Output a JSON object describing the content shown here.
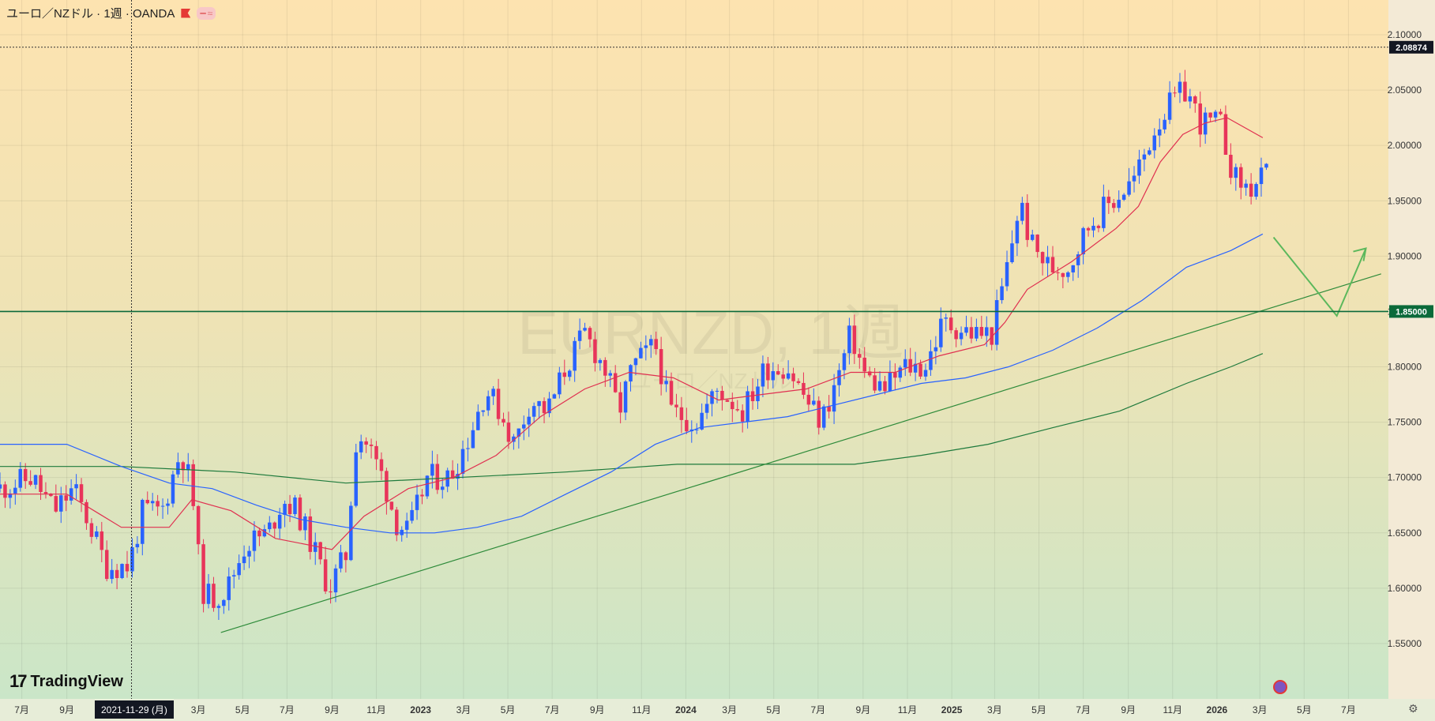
{
  "header": {
    "title": "ユーロ／NZドル · 1週 · OANDA",
    "pill_icons": [
      "minus-icon",
      "wave-icon"
    ],
    "pill_glyphs": [
      "━",
      "≈"
    ]
  },
  "watermark": {
    "symbol": "EURNZD, 1週",
    "name": "ユーロ／NZドル"
  },
  "brand": {
    "name": "TradingView"
  },
  "crosshair": {
    "date_label": "2021-11-29 (月)",
    "price_label": "2.08874"
  },
  "colors": {
    "up": "#2962ff",
    "down": "#e8345a",
    "ma_fast": "#e03050",
    "ma_mid": "#2962ff",
    "ma_slow": "#1e7a3c",
    "level_line": "#0b6a3a",
    "trend_line": "#2e8b3a",
    "forecast": "#5cb85c"
  },
  "chart_data": {
    "type": "candlestick",
    "symbol": "EURNZD",
    "timeframe": "1週",
    "ylim": [
      1.5,
      2.11
    ],
    "y_ticks": [
      "2.10000",
      "2.05000",
      "2.00000",
      "1.95000",
      "1.90000",
      "1.85000",
      "1.80000",
      "1.75000",
      "1.70000",
      "1.65000",
      "1.60000",
      "1.55000"
    ],
    "x_ticks": [
      {
        "label": "7月",
        "date": "2021-07-01"
      },
      {
        "label": "9月",
        "date": "2021-09-01"
      },
      {
        "label": "3月",
        "date": "2022-03-01"
      },
      {
        "label": "5月",
        "date": "2022-05-01"
      },
      {
        "label": "7月",
        "date": "2022-07-01"
      },
      {
        "label": "9月",
        "date": "2022-09-01"
      },
      {
        "label": "11月",
        "date": "2022-11-01"
      },
      {
        "label": "2023",
        "date": "2023-01-01"
      },
      {
        "label": "3月",
        "date": "2023-03-01"
      },
      {
        "label": "5月",
        "date": "2023-05-01"
      },
      {
        "label": "7月",
        "date": "2023-07-01"
      },
      {
        "label": "9月",
        "date": "2023-09-01"
      },
      {
        "label": "11月",
        "date": "2023-11-01"
      },
      {
        "label": "2024",
        "date": "2024-01-01"
      },
      {
        "label": "3月",
        "date": "2024-03-01"
      },
      {
        "label": "5月",
        "date": "2024-05-01"
      },
      {
        "label": "7月",
        "date": "2024-07-01"
      },
      {
        "label": "9月",
        "date": "2024-09-01"
      },
      {
        "label": "11月",
        "date": "2024-11-01"
      },
      {
        "label": "2025",
        "date": "2025-01-01"
      },
      {
        "label": "3月",
        "date": "2025-03-01"
      },
      {
        "label": "5月",
        "date": "2025-05-01"
      },
      {
        "label": "7月",
        "date": "2025-07-01"
      },
      {
        "label": "9月",
        "date": "2025-09-01"
      },
      {
        "label": "11月",
        "date": "2025-11-01"
      },
      {
        "label": "2026",
        "date": "2026-01-01"
      },
      {
        "label": "3月",
        "date": "2026-03-01"
      },
      {
        "label": "5月",
        "date": "2026-05-01"
      },
      {
        "label": "7月",
        "date": "2026-07-01"
      }
    ],
    "price_path": [
      [
        "2021-06-01",
        1.69
      ],
      [
        "2021-07-15",
        1.7
      ],
      [
        "2021-08-15",
        1.67
      ],
      [
        "2021-09-10",
        1.69
      ],
      [
        "2021-10-01",
        1.66
      ],
      [
        "2021-10-25",
        1.62
      ],
      [
        "2021-11-25",
        1.62
      ],
      [
        "2021-12-15",
        1.67
      ],
      [
        "2022-01-10",
        1.67
      ],
      [
        "2022-02-05",
        1.725
      ],
      [
        "2022-02-20",
        1.69
      ],
      [
        "2022-03-05",
        1.6
      ],
      [
        "2022-03-20",
        1.59
      ],
      [
        "2022-04-10",
        1.6
      ],
      [
        "2022-05-05",
        1.64
      ],
      [
        "2022-06-05",
        1.65
      ],
      [
        "2022-06-25",
        1.68
      ],
      [
        "2022-07-15",
        1.67
      ],
      [
        "2022-08-10",
        1.63
      ],
      [
        "2022-08-28",
        1.6
      ],
      [
        "2022-09-20",
        1.63
      ],
      [
        "2022-10-05",
        1.74
      ],
      [
        "2022-10-20",
        1.73
      ],
      [
        "2022-11-10",
        1.7
      ],
      [
        "2022-11-28",
        1.66
      ],
      [
        "2022-12-15",
        1.65
      ],
      [
        "2023-01-10",
        1.7
      ],
      [
        "2023-02-10",
        1.7
      ],
      [
        "2023-03-10",
        1.74
      ],
      [
        "2023-04-01",
        1.78
      ],
      [
        "2023-04-20",
        1.76
      ],
      [
        "2023-05-10",
        1.73
      ],
      [
        "2023-06-01",
        1.77
      ],
      [
        "2023-06-25",
        1.76
      ],
      [
        "2023-07-20",
        1.8
      ],
      [
        "2023-08-15",
        1.83
      ],
      [
        "2023-09-10",
        1.8
      ],
      [
        "2023-10-01",
        1.76
      ],
      [
        "2023-10-20",
        1.8
      ],
      [
        "2023-11-20",
        1.82
      ],
      [
        "2023-12-10",
        1.76
      ],
      [
        "2024-01-15",
        1.75
      ],
      [
        "2024-02-15",
        1.78
      ],
      [
        "2024-03-20",
        1.76
      ],
      [
        "2024-04-20",
        1.8
      ],
      [
        "2024-05-20",
        1.8
      ],
      [
        "2024-06-15",
        1.77
      ],
      [
        "2024-07-05",
        1.75
      ],
      [
        "2024-07-28",
        1.79
      ],
      [
        "2024-08-15",
        1.83
      ],
      [
        "2024-09-05",
        1.79
      ],
      [
        "2024-10-01",
        1.78
      ],
      [
        "2024-10-28",
        1.8
      ],
      [
        "2024-11-25",
        1.8
      ],
      [
        "2024-12-20",
        1.84
      ],
      [
        "2025-02-01",
        1.83
      ],
      [
        "2025-02-25",
        1.83
      ],
      [
        "2025-03-15",
        1.88
      ],
      [
        "2025-04-05",
        1.95
      ],
      [
        "2025-04-20",
        1.91
      ],
      [
        "2025-05-15",
        1.89
      ],
      [
        "2025-06-10",
        1.89
      ],
      [
        "2025-07-10",
        1.93
      ],
      [
        "2025-08-10",
        1.95
      ],
      [
        "2025-09-10",
        1.97
      ],
      [
        "2025-10-10",
        2.02
      ],
      [
        "2025-11-01",
        2.04
      ],
      [
        "2025-11-20",
        2.05
      ],
      [
        "2025-12-10",
        2.02
      ],
      [
        "2026-01-05",
        2.02
      ],
      [
        "2026-01-25",
        1.97
      ],
      [
        "2026-02-15",
        1.96
      ],
      [
        "2026-03-05",
        1.97
      ],
      [
        "2026-03-15",
        1.975
      ]
    ],
    "ma_fast": [
      [
        "2021-06-01",
        1.685
      ],
      [
        "2021-09-01",
        1.685
      ],
      [
        "2021-11-15",
        1.655
      ],
      [
        "2022-01-20",
        1.655
      ],
      [
        "2022-02-20",
        1.68
      ],
      [
        "2022-04-15",
        1.67
      ],
      [
        "2022-06-15",
        1.645
      ],
      [
        "2022-09-01",
        1.635
      ],
      [
        "2022-10-15",
        1.665
      ],
      [
        "2022-12-15",
        1.69
      ],
      [
        "2023-02-15",
        1.7
      ],
      [
        "2023-04-15",
        1.72
      ],
      [
        "2023-06-15",
        1.755
      ],
      [
        "2023-08-15",
        1.78
      ],
      [
        "2023-10-15",
        1.795
      ],
      [
        "2023-12-15",
        1.79
      ],
      [
        "2024-02-15",
        1.77
      ],
      [
        "2024-04-15",
        1.775
      ],
      [
        "2024-06-15",
        1.78
      ],
      [
        "2024-08-15",
        1.795
      ],
      [
        "2024-10-15",
        1.795
      ],
      [
        "2024-12-15",
        1.81
      ],
      [
        "2025-02-15",
        1.82
      ],
      [
        "2025-03-15",
        1.84
      ],
      [
        "2025-04-15",
        1.87
      ],
      [
        "2025-06-15",
        1.895
      ],
      [
        "2025-08-15",
        1.925
      ],
      [
        "2025-09-15",
        1.945
      ],
      [
        "2025-10-15",
        1.985
      ],
      [
        "2025-11-15",
        2.01
      ],
      [
        "2025-12-15",
        2.02
      ],
      [
        "2026-01-15",
        2.025
      ],
      [
        "2026-03-05",
        2.007
      ]
    ],
    "ma_mid": [
      [
        "2021-06-01",
        1.73
      ],
      [
        "2021-09-01",
        1.73
      ],
      [
        "2021-11-15",
        1.71
      ],
      [
        "2022-01-20",
        1.695
      ],
      [
        "2022-03-20",
        1.69
      ],
      [
        "2022-05-20",
        1.675
      ],
      [
        "2022-07-20",
        1.662
      ],
      [
        "2022-09-20",
        1.655
      ],
      [
        "2022-11-20",
        1.65
      ],
      [
        "2023-01-20",
        1.65
      ],
      [
        "2023-03-20",
        1.655
      ],
      [
        "2023-05-20",
        1.665
      ],
      [
        "2023-07-20",
        1.685
      ],
      [
        "2023-09-20",
        1.705
      ],
      [
        "2023-11-20",
        1.73
      ],
      [
        "2024-01-20",
        1.745
      ],
      [
        "2024-03-20",
        1.75
      ],
      [
        "2024-05-20",
        1.755
      ],
      [
        "2024-07-20",
        1.765
      ],
      [
        "2024-09-20",
        1.775
      ],
      [
        "2024-11-20",
        1.785
      ],
      [
        "2025-01-20",
        1.79
      ],
      [
        "2025-03-20",
        1.8
      ],
      [
        "2025-05-20",
        1.815
      ],
      [
        "2025-07-20",
        1.835
      ],
      [
        "2025-09-20",
        1.86
      ],
      [
        "2025-11-20",
        1.89
      ],
      [
        "2026-01-20",
        1.905
      ],
      [
        "2026-03-05",
        1.92
      ]
    ],
    "ma_slow": [
      [
        "2021-06-01",
        1.71
      ],
      [
        "2021-11-15",
        1.71
      ],
      [
        "2022-04-20",
        1.705
      ],
      [
        "2022-09-20",
        1.695
      ],
      [
        "2023-02-20",
        1.7
      ],
      [
        "2023-07-20",
        1.705
      ],
      [
        "2023-12-20",
        1.712
      ],
      [
        "2024-05-20",
        1.712
      ],
      [
        "2024-08-20",
        1.712
      ],
      [
        "2024-11-20",
        1.72
      ],
      [
        "2025-02-20",
        1.73
      ],
      [
        "2025-05-20",
        1.745
      ],
      [
        "2025-08-20",
        1.76
      ],
      [
        "2025-11-20",
        1.785
      ],
      [
        "2026-01-20",
        1.8
      ],
      [
        "2026-03-05",
        1.812
      ]
    ],
    "level_line": 1.85,
    "trend_line": [
      [
        "2022-04-01",
        1.56
      ],
      [
        "2026-08-15",
        1.884
      ]
    ],
    "forecast_path": [
      [
        "2026-03-20",
        1.917
      ],
      [
        "2026-06-15",
        1.846
      ],
      [
        "2026-07-25",
        1.907
      ]
    ],
    "crosshair_date": "2021-11-29",
    "crosshair_price": 2.08874
  }
}
